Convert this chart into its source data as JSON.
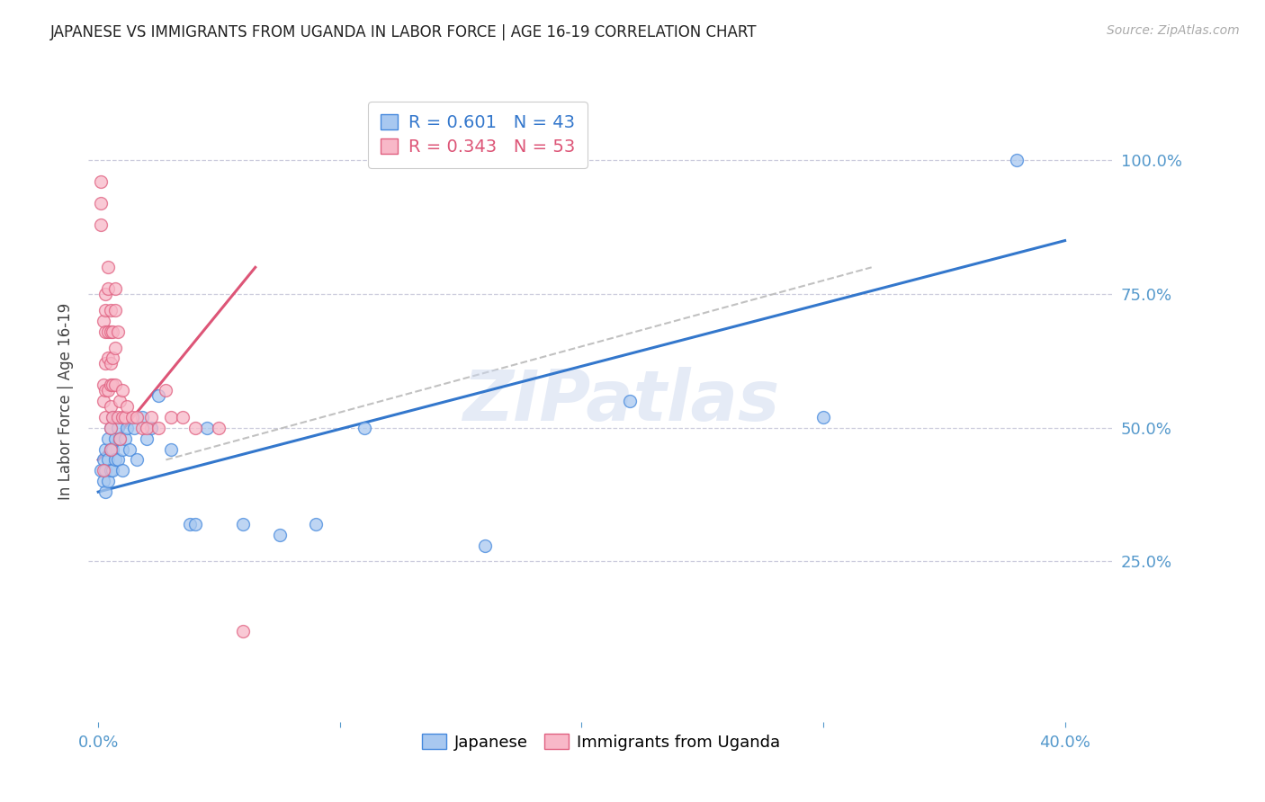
{
  "title": "JAPANESE VS IMMIGRANTS FROM UGANDA IN LABOR FORCE | AGE 16-19 CORRELATION CHART",
  "source": "Source: ZipAtlas.com",
  "ylabel": "In Labor Force | Age 16-19",
  "watermark": "ZIPatlas",
  "legend_r_blue": "0.601",
  "legend_n_blue": "43",
  "legend_r_pink": "0.343",
  "legend_n_pink": "53",
  "blue_color": "#a8c8f0",
  "pink_color": "#f8b8c8",
  "blue_edge_color": "#4488dd",
  "pink_edge_color": "#e06080",
  "blue_line_color": "#3377cc",
  "pink_line_color": "#dd5577",
  "dashed_line_color": "#bbbbbb",
  "grid_color": "#ccccdd",
  "axis_label_color": "#5599cc",
  "background": "#ffffff",
  "japanese_x": [
    0.001,
    0.002,
    0.002,
    0.003,
    0.003,
    0.003,
    0.004,
    0.004,
    0.004,
    0.005,
    0.005,
    0.005,
    0.006,
    0.006,
    0.006,
    0.007,
    0.007,
    0.008,
    0.008,
    0.009,
    0.01,
    0.01,
    0.011,
    0.012,
    0.013,
    0.015,
    0.016,
    0.018,
    0.02,
    0.022,
    0.025,
    0.03,
    0.038,
    0.04,
    0.045,
    0.06,
    0.075,
    0.09,
    0.11,
    0.16,
    0.22,
    0.3,
    0.38
  ],
  "japanese_y": [
    0.42,
    0.44,
    0.4,
    0.46,
    0.42,
    0.38,
    0.48,
    0.44,
    0.4,
    0.5,
    0.46,
    0.42,
    0.52,
    0.46,
    0.42,
    0.48,
    0.44,
    0.5,
    0.44,
    0.48,
    0.46,
    0.42,
    0.48,
    0.5,
    0.46,
    0.5,
    0.44,
    0.52,
    0.48,
    0.5,
    0.56,
    0.46,
    0.32,
    0.32,
    0.5,
    0.32,
    0.3,
    0.32,
    0.5,
    0.28,
    0.55,
    0.52,
    1.0
  ],
  "uganda_x": [
    0.001,
    0.001,
    0.001,
    0.002,
    0.002,
    0.002,
    0.002,
    0.003,
    0.003,
    0.003,
    0.003,
    0.003,
    0.003,
    0.004,
    0.004,
    0.004,
    0.004,
    0.004,
    0.005,
    0.005,
    0.005,
    0.005,
    0.005,
    0.005,
    0.005,
    0.006,
    0.006,
    0.006,
    0.006,
    0.007,
    0.007,
    0.007,
    0.007,
    0.008,
    0.008,
    0.009,
    0.009,
    0.01,
    0.01,
    0.011,
    0.012,
    0.014,
    0.016,
    0.018,
    0.02,
    0.022,
    0.025,
    0.028,
    0.03,
    0.035,
    0.04,
    0.05,
    0.06
  ],
  "uganda_y": [
    0.96,
    0.92,
    0.88,
    0.7,
    0.58,
    0.55,
    0.42,
    0.75,
    0.72,
    0.68,
    0.62,
    0.57,
    0.52,
    0.8,
    0.76,
    0.68,
    0.63,
    0.57,
    0.72,
    0.68,
    0.62,
    0.58,
    0.54,
    0.5,
    0.46,
    0.68,
    0.63,
    0.58,
    0.52,
    0.76,
    0.72,
    0.65,
    0.58,
    0.68,
    0.52,
    0.55,
    0.48,
    0.57,
    0.52,
    0.52,
    0.54,
    0.52,
    0.52,
    0.5,
    0.5,
    0.52,
    0.5,
    0.57,
    0.52,
    0.52,
    0.5,
    0.5,
    0.12
  ],
  "blue_trendline_x": [
    0.0,
    0.4
  ],
  "blue_trendline_y": [
    0.38,
    0.85
  ],
  "pink_trendline_x": [
    0.0,
    0.065
  ],
  "pink_trendline_y": [
    0.44,
    0.8
  ],
  "dashed_trendline_x": [
    0.028,
    0.32
  ],
  "dashed_trendline_y": [
    0.44,
    0.8
  ],
  "xlim": [
    -0.004,
    0.42
  ],
  "ylim": [
    -0.05,
    1.15
  ]
}
